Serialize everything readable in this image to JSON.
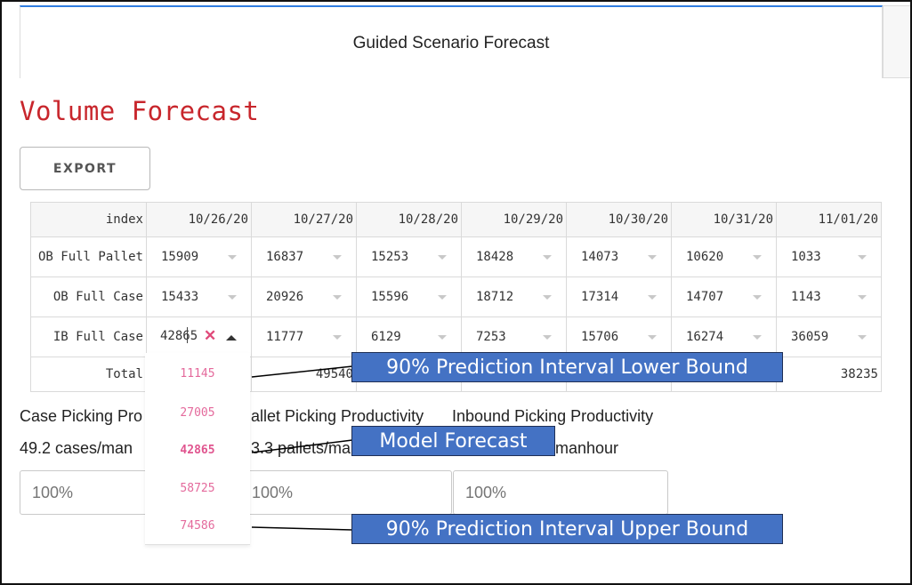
{
  "tab": {
    "title": "Guided Scenario Forecast"
  },
  "page": {
    "title": "Volume Forecast"
  },
  "toolbar": {
    "export_label": "EXPORT"
  },
  "table": {
    "index_header": "index",
    "dates": [
      "10/26/20",
      "10/27/20",
      "10/28/20",
      "10/29/20",
      "10/30/20",
      "10/31/20",
      "11/01/20"
    ],
    "rows": [
      {
        "label": "OB Full Pallet",
        "values": [
          "15909",
          "16837",
          "15253",
          "18428",
          "14073",
          "10620",
          "1033"
        ]
      },
      {
        "label": "OB Full Case",
        "values": [
          "15433",
          "20926",
          "15596",
          "18712",
          "17314",
          "14707",
          "1143"
        ]
      },
      {
        "label": "IB Full Case",
        "values": [
          "42865",
          "11777",
          "6129",
          "7253",
          "15706",
          "16274",
          "36059"
        ]
      }
    ],
    "total": {
      "label": "Total",
      "visible_values": {
        "c2": "49540",
        "c7": "38235"
      }
    }
  },
  "dropdown": {
    "options": [
      "11145",
      "27005",
      "42865",
      "58725",
      "74586"
    ],
    "selected": "42865"
  },
  "productivity": {
    "case_label": "Case Picking Pro",
    "pallet_label": "allet Picking Productivity",
    "inbound_label": "Inbound Picking Productivity",
    "case_value": "49.2 cases/man",
    "pallet_value": "3.3 pallets/ma",
    "inbound_value": "manhour",
    "case_placeholder": "100%",
    "pallet_placeholder": "100%",
    "inbound_placeholder": "100%"
  },
  "callouts": {
    "lower": "90% Prediction Interval Lower Bound",
    "model": "Model Forecast",
    "upper": "90% Prediction Interval Upper Bound"
  },
  "colors": {
    "title_red": "#c8262c",
    "option_pink": "#e46a9c",
    "callout_blue": "#4472c4",
    "tab_accent": "#2f7de1"
  }
}
